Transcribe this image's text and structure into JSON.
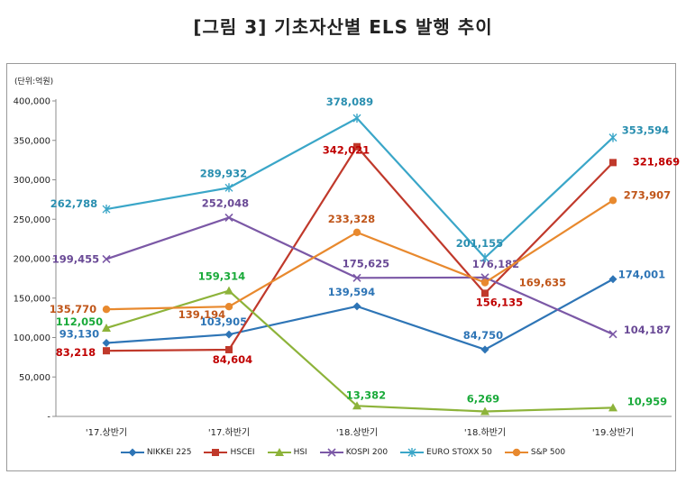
{
  "title": "[그림 3] 기초자산별 ELS 발행 추이",
  "unit_label": "(단위:억원)",
  "chart_data": {
    "type": "line",
    "categories": [
      "'17.상반기",
      "'17.하반기",
      "'18.상반기",
      "'18.하반기",
      "'19.상반기"
    ],
    "y_ticks": [
      "400,000",
      "350,000",
      "300,000",
      "250,000",
      "200,000",
      "150,000",
      "100,000",
      "50,000",
      "-"
    ],
    "ylim": [
      0,
      400000
    ],
    "grid": false,
    "legend_position": "bottom",
    "series": [
      {
        "name": "NIKKEI 225",
        "color": "#2e75b6",
        "label_color": "#2e75b6",
        "marker": "diamond",
        "values": [
          93130,
          103905,
          139594,
          84750,
          174001
        ],
        "labels": [
          "93,130",
          "103,905",
          "139,594",
          "84,750",
          "174,001"
        ]
      },
      {
        "name": "HSCEI",
        "color": "#c0392b",
        "label_color": "#c00000",
        "marker": "square",
        "values": [
          83218,
          84604,
          342021,
          156135,
          321869
        ],
        "labels": [
          "83,218",
          "84,604",
          "342,021",
          "156,135",
          "321,869"
        ]
      },
      {
        "name": "HSI",
        "color": "#8db33a",
        "label_color": "#1aaa3a",
        "marker": "triangle",
        "values": [
          112050,
          159314,
          13382,
          6269,
          10959
        ],
        "labels": [
          "112,050",
          "159,314",
          "13,382",
          "6,269",
          "10,959"
        ]
      },
      {
        "name": "KOSPI 200",
        "color": "#7b58a6",
        "label_color": "#6a4a96",
        "marker": "x",
        "values": [
          199455,
          252048,
          175625,
          176182,
          104187
        ],
        "labels": [
          "199,455",
          "252,048",
          "175,625",
          "176,182",
          "104,187"
        ]
      },
      {
        "name": "EURO STOXX 50",
        "color": "#3aa6c8",
        "label_color": "#2a8fb0",
        "marker": "star",
        "values": [
          262788,
          289932,
          378089,
          201155,
          353594
        ],
        "labels": [
          "262,788",
          "289,932",
          "378,089",
          "201,155",
          "353,594"
        ]
      },
      {
        "name": "S&P 500",
        "color": "#e8892e",
        "label_color": "#c0561a",
        "marker": "circle",
        "values": [
          135770,
          139194,
          233328,
          169635,
          273907
        ],
        "labels": [
          "135,770",
          "139,194",
          "233,328",
          "169,635",
          "273,907"
        ]
      }
    ]
  }
}
